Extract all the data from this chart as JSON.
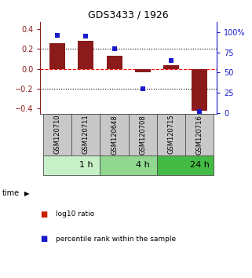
{
  "title": "GDS3433 / 1926",
  "samples": [
    "GSM120710",
    "GSM120711",
    "GSM120648",
    "GSM120708",
    "GSM120715",
    "GSM120716"
  ],
  "log10_ratio": [
    0.26,
    0.28,
    0.13,
    -0.03,
    0.04,
    -0.42
  ],
  "percentile_rank": [
    96,
    95,
    80,
    30,
    65,
    2
  ],
  "time_groups": [
    {
      "label": "1 h",
      "start": 0,
      "end": 2,
      "color": "#c8f0c8"
    },
    {
      "label": "4 h",
      "start": 2,
      "end": 4,
      "color": "#90d890"
    },
    {
      "label": "24 h",
      "start": 4,
      "end": 6,
      "color": "#44bb44"
    }
  ],
  "bar_color": "#8b1a1a",
  "dot_color": "#1a1acd",
  "ylim_left": [
    -0.45,
    0.47
  ],
  "ylim_right": [
    -1.125,
    112.5
  ],
  "yticks_left": [
    -0.4,
    -0.2,
    0.0,
    0.2,
    0.4
  ],
  "yticks_right": [
    0,
    25,
    50,
    75,
    100
  ],
  "ytick_labels_right": [
    "0",
    "25",
    "50",
    "75",
    "100%"
  ],
  "hlines": [
    -0.2,
    0.0,
    0.2
  ],
  "hline_styles": [
    "dotted",
    "dashed",
    "dotted"
  ],
  "hline_colors": [
    "black",
    "red",
    "black"
  ],
  "sample_bg_color": "#c8c8c8",
  "sample_border_color": "#505050",
  "legend_labels": [
    "log10 ratio",
    "percentile rank within the sample"
  ],
  "legend_colors": [
    "#cc2200",
    "#1a1acd"
  ],
  "time_label": "time"
}
